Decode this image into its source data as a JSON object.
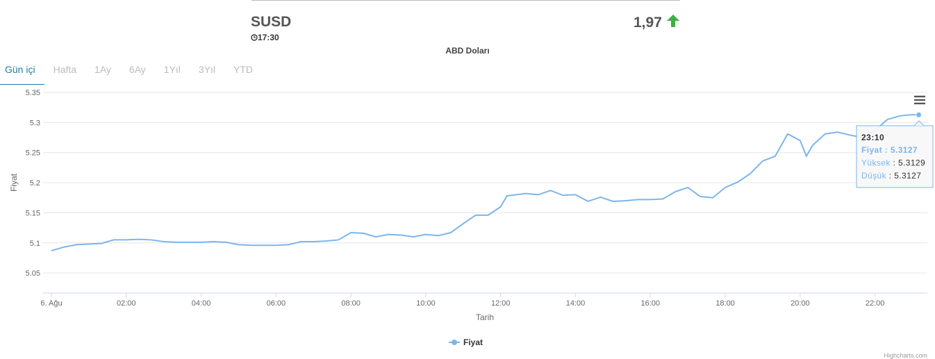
{
  "header": {
    "symbol": "SUSD",
    "time": "17:30",
    "change": "1,97",
    "description": "ABD Doları"
  },
  "tabs": [
    "Gün içi",
    "Hafta",
    "1Ay",
    "6Ay",
    "1Yıl",
    "3Yıl",
    "YTD"
  ],
  "chart_data": {
    "type": "line",
    "x_label": "Tarih",
    "y_label": "Fiyat",
    "credits": "Highcharts.com",
    "x": [
      "00:00",
      "00:20",
      "00:40",
      "01:00",
      "01:20",
      "01:40",
      "02:00",
      "02:20",
      "02:40",
      "03:00",
      "03:20",
      "03:40",
      "04:00",
      "04:20",
      "04:40",
      "05:00",
      "05:20",
      "05:40",
      "06:00",
      "06:20",
      "06:40",
      "07:00",
      "07:20",
      "07:40",
      "08:00",
      "08:20",
      "08:40",
      "09:00",
      "09:20",
      "09:40",
      "10:00",
      "10:20",
      "10:40",
      "11:00",
      "11:20",
      "11:40",
      "12:00",
      "12:10",
      "12:40",
      "13:00",
      "13:20",
      "13:40",
      "14:00",
      "14:20",
      "14:40",
      "15:00",
      "15:20",
      "15:40",
      "16:00",
      "16:20",
      "16:40",
      "17:00",
      "17:20",
      "17:40",
      "18:00",
      "18:20",
      "18:40",
      "19:00",
      "19:20",
      "19:40",
      "20:00",
      "20:10",
      "20:20",
      "20:40",
      "21:00",
      "21:20",
      "21:40",
      "22:00",
      "22:20",
      "22:40",
      "23:00",
      "23:10"
    ],
    "series": [
      {
        "name": "Fiyat",
        "color": "#7cb5ec",
        "values": [
          5.087,
          5.093,
          5.097,
          5.098,
          5.099,
          5.105,
          5.105,
          5.106,
          5.105,
          5.102,
          5.101,
          5.101,
          5.101,
          5.102,
          5.101,
          5.097,
          5.096,
          5.096,
          5.096,
          5.097,
          5.102,
          5.102,
          5.103,
          5.105,
          5.117,
          5.116,
          5.11,
          5.114,
          5.113,
          5.11,
          5.114,
          5.112,
          5.117,
          5.132,
          5.146,
          5.146,
          5.16,
          5.178,
          5.182,
          5.18,
          5.187,
          5.179,
          5.18,
          5.169,
          5.176,
          5.169,
          5.17,
          5.172,
          5.172,
          5.173,
          5.185,
          5.192,
          5.177,
          5.175,
          5.192,
          5.201,
          5.215,
          5.236,
          5.244,
          5.281,
          5.27,
          5.244,
          5.262,
          5.281,
          5.284,
          5.279,
          5.275,
          5.287,
          5.305,
          5.311,
          5.313,
          5.3127
        ]
      }
    ],
    "xlim": [
      "00:00",
      "23:25"
    ],
    "xticks": [
      {
        "value": "00:00",
        "label": "6. Ağu"
      },
      "02:00",
      "04:00",
      "06:00",
      "08:00",
      "10:00",
      "12:00",
      "14:00",
      "16:00",
      "18:00",
      "20:00",
      "22:00"
    ],
    "ylim": [
      5.0167,
      5.35
    ],
    "yticks": [
      5.05,
      5.1,
      5.15,
      5.2,
      5.25,
      5.3,
      5.35
    ],
    "grid": true,
    "tooltip": {
      "time": "23:10",
      "rows": [
        {
          "label": "Fiyat",
          "value": 5.3127
        },
        {
          "label": "Yüksek",
          "value": 5.3129
        },
        {
          "label": "Düşük",
          "value": 5.3127
        }
      ]
    }
  }
}
